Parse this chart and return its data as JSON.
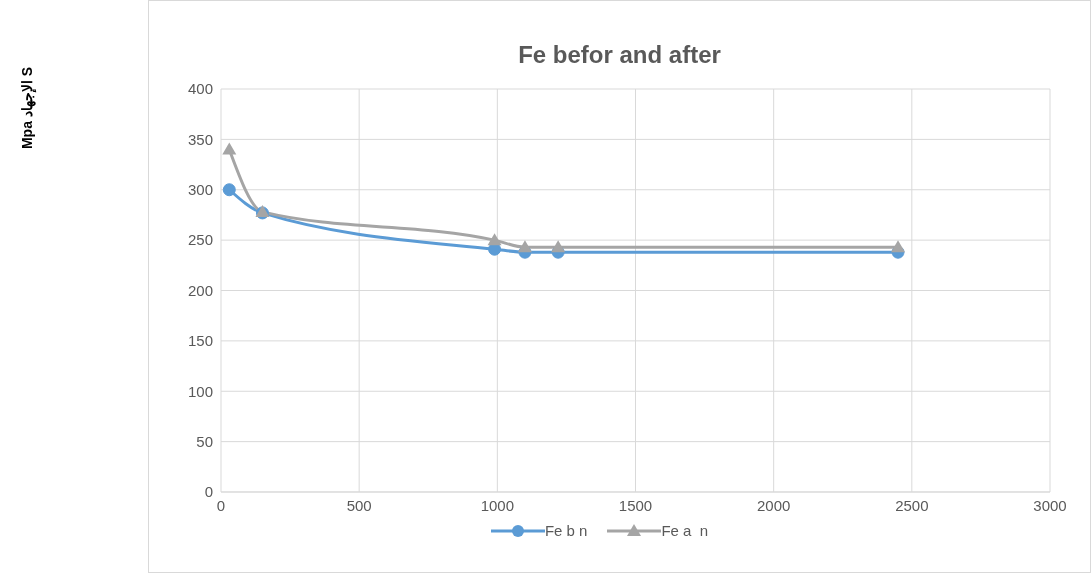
{
  "chart_data": {
    "type": "line",
    "title": "Fe befor and after",
    "annotations": [
      "Mpa الإجهاد S"
    ],
    "x": [
      30,
      150,
      990,
      1100,
      1220,
      2450
    ],
    "series": [
      {
        "name": "Fe b n",
        "color": "#5b9bd5",
        "marker": "circle",
        "values": [
          300,
          277,
          241,
          238,
          238,
          238
        ]
      },
      {
        "name": "Fe a  n",
        "color": "#a5a5a5",
        "marker": "triangle",
        "values": [
          340,
          278,
          250,
          243,
          243,
          243
        ]
      }
    ],
    "xlim": [
      0,
      3000
    ],
    "xticks": [
      0,
      500,
      1000,
      1500,
      2000,
      2500,
      3000
    ],
    "ylim": [
      0,
      400
    ],
    "yticks": [
      0,
      50,
      100,
      150,
      200,
      250,
      300,
      350,
      400
    ],
    "grid": true,
    "legend": "bottom"
  }
}
